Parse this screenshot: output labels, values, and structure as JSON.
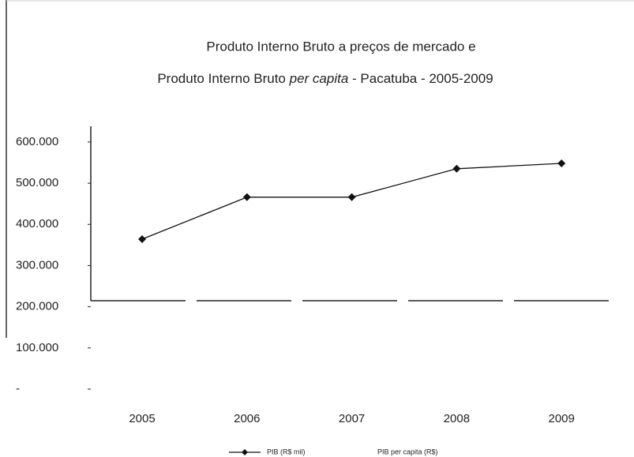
{
  "chart_data": {
    "type": "line",
    "title_line1": "Produto Interno Bruto a preços de mercado e",
    "title_line2": [
      "Produto Interno Bruto ",
      "per capita",
      " - Pacatuba - 2005-2009"
    ],
    "categories": [
      "2005",
      "2006",
      "2007",
      "2008",
      "2009"
    ],
    "series": [
      {
        "name": "PIB (R$ mil)",
        "color": "#111111",
        "values": [
          364000,
          466000,
          466000,
          535000,
          548000
        ]
      },
      {
        "name": "PIB per capita (R$)",
        "color": "#bbbbbb",
        "values": [
          null,
          null,
          null,
          null,
          null
        ]
      }
    ],
    "ylim": [
      0,
      640000
    ],
    "yticks": [
      {
        "value": 0,
        "label": "-"
      },
      {
        "value": 100000,
        "label": "100.000"
      },
      {
        "value": 200000,
        "label": "200.000"
      },
      {
        "value": 300000,
        "label": "300.000"
      },
      {
        "value": 400000,
        "label": "400.000"
      },
      {
        "value": 500000,
        "label": "500.000"
      },
      {
        "value": 600000,
        "label": "600.000"
      }
    ]
  }
}
